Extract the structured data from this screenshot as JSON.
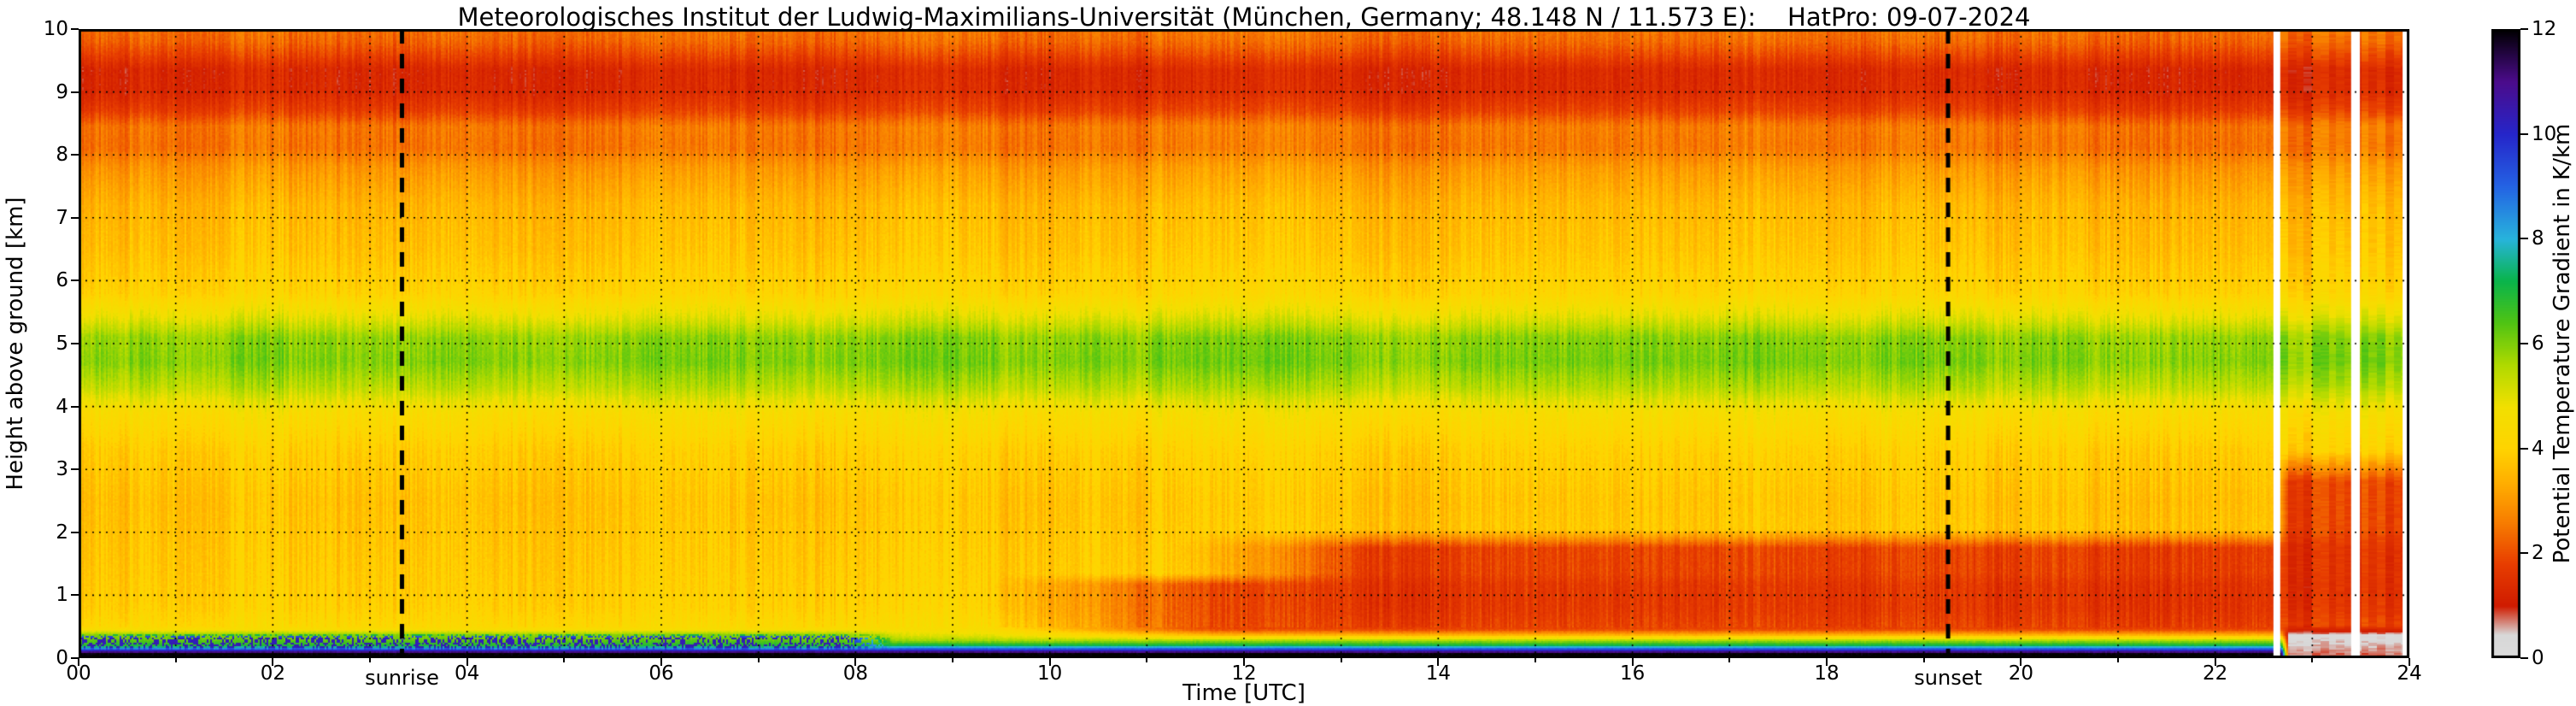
{
  "chart_data": {
    "type": "heatmap",
    "title": "Meteorologisches Institut der Ludwig-Maximilians-Universität (München, Germany; 48.148 N / 11.573 E):    HatPro: 09-07-2024",
    "xlabel": "Time [UTC]",
    "ylabel": "Height above ground [km]",
    "colorbar_label": "Potential Temperature Gradient in K/km",
    "xlim": [
      0,
      24
    ],
    "ylim": [
      0,
      10
    ],
    "clim": [
      0,
      12
    ],
    "x_ticks": {
      "positions": [
        0,
        2,
        4,
        6,
        8,
        10,
        12,
        14,
        16,
        18,
        20,
        22,
        24
      ],
      "labels": [
        "00",
        "02",
        "04",
        "06",
        "08",
        "10",
        "12",
        "14",
        "16",
        "18",
        "20",
        "22",
        "24"
      ],
      "minor": [
        1,
        3,
        5,
        7,
        9,
        11,
        13,
        15,
        17,
        19,
        21,
        23
      ]
    },
    "y_ticks": {
      "positions": [
        0,
        1,
        2,
        3,
        4,
        5,
        6,
        7,
        8,
        9,
        10
      ],
      "labels": [
        "0",
        "1",
        "2",
        "3",
        "4",
        "5",
        "6",
        "7",
        "8",
        "9",
        "10"
      ]
    },
    "colorbar_ticks": {
      "positions": [
        0,
        2,
        4,
        6,
        8,
        10,
        12
      ],
      "labels": [
        "0",
        "2",
        "4",
        "6",
        "8",
        "10",
        "12"
      ]
    },
    "grid": {
      "style": "dotted",
      "x_step": 1,
      "y_step": 1
    },
    "annotations": [
      {
        "x": 3.33,
        "label": "sunrise",
        "line": "dashed"
      },
      {
        "x": 19.25,
        "label": "sunset",
        "line": "dashed"
      }
    ],
    "colormap": [
      {
        "v": 0.0,
        "c": "#dcdcdc"
      },
      {
        "v": 0.45,
        "c": "#d8d8d8"
      },
      {
        "v": 1.0,
        "c": "#d01c00"
      },
      {
        "v": 1.8,
        "c": "#e83e00"
      },
      {
        "v": 2.6,
        "c": "#f87e00"
      },
      {
        "v": 3.3,
        "c": "#ffac00"
      },
      {
        "v": 4.0,
        "c": "#ffd400"
      },
      {
        "v": 4.8,
        "c": "#f2e000"
      },
      {
        "v": 5.6,
        "c": "#b0da00"
      },
      {
        "v": 6.4,
        "c": "#50c414"
      },
      {
        "v": 7.2,
        "c": "#0ab44c"
      },
      {
        "v": 8.0,
        "c": "#28b4dc"
      },
      {
        "v": 9.0,
        "c": "#2464e4"
      },
      {
        "v": 10.0,
        "c": "#2626ca"
      },
      {
        "v": 11.0,
        "c": "#4c0c8c"
      },
      {
        "v": 12.0,
        "c": "#000000"
      }
    ],
    "base_profile": [
      [
        0.0,
        12.0
      ],
      [
        0.07,
        12.0
      ],
      [
        0.11,
        10.6
      ],
      [
        0.15,
        9.0
      ],
      [
        0.2,
        7.2
      ],
      [
        0.27,
        5.8
      ],
      [
        0.35,
        5.0
      ],
      [
        0.5,
        4.3
      ],
      [
        0.8,
        4.0
      ],
      [
        1.5,
        3.85
      ],
      [
        2.5,
        3.7
      ],
      [
        3.3,
        3.95
      ],
      [
        3.9,
        4.5
      ],
      [
        4.3,
        5.5
      ],
      [
        4.7,
        6.05
      ],
      [
        5.1,
        5.9
      ],
      [
        5.45,
        4.9
      ],
      [
        5.8,
        4.1
      ],
      [
        6.5,
        3.7
      ],
      [
        7.2,
        3.5
      ],
      [
        7.8,
        3.0
      ],
      [
        8.1,
        2.5
      ],
      [
        8.45,
        2.55
      ],
      [
        8.7,
        1.8
      ],
      [
        9.0,
        1.35
      ],
      [
        9.35,
        1.3
      ],
      [
        9.6,
        1.9
      ],
      [
        9.8,
        2.3
      ],
      [
        10.0,
        2.45
      ]
    ],
    "anomalies": [
      {
        "name": "daytime-mixed-layer-core",
        "t": [
          9.3,
          30
        ],
        "tf": 2.4,
        "h": [
          0.28,
          1.35
        ],
        "hf": 0.18,
        "value": 1.7,
        "w": 0.95
      },
      {
        "name": "daytime-mixed-layer-upper",
        "t": [
          11.2,
          30
        ],
        "tf": 2.0,
        "h": [
          0.5,
          2.05
        ],
        "hf": 0.3,
        "value": 1.6,
        "w": 0.9
      },
      {
        "name": "night-stable-surface-layer",
        "t": [
          -2,
          8.6
        ],
        "tf": 0.8,
        "h": [
          0.12,
          0.45
        ],
        "hf": 0.08,
        "value": 6.8,
        "w": 0.55
      },
      {
        "name": "night-surface-speckle",
        "t": [
          -2,
          8.4
        ],
        "tf": 0.5,
        "h": [
          0.13,
          0.38
        ],
        "hf": 0.05,
        "value": 11.0,
        "w": 0.85,
        "prob": 0.42
      },
      {
        "name": "evening-disturbance-red",
        "t": [
          22.62,
          30
        ],
        "tf": 0.12,
        "h": [
          0.55,
          3.3
        ],
        "hf": 0.5,
        "value": 1.45,
        "w": 0.82
      },
      {
        "name": "evening-surface-gray",
        "t": [
          22.68,
          30
        ],
        "tf": 0.08,
        "h": [
          -0.4,
          0.52
        ],
        "hf": 0.15,
        "value": 0.15,
        "w": 0.95
      }
    ],
    "gaps": [
      [
        22.6,
        22.67
      ],
      [
        23.4,
        23.49
      ],
      [
        23.93,
        24.0
      ]
    ],
    "noise": {
      "column_amplitude": 0.45,
      "surface_amplitude": 0.12,
      "upper_amplitude": 0.42,
      "cell_amplitude": 0.12,
      "blocky_after": 22.62
    }
  }
}
